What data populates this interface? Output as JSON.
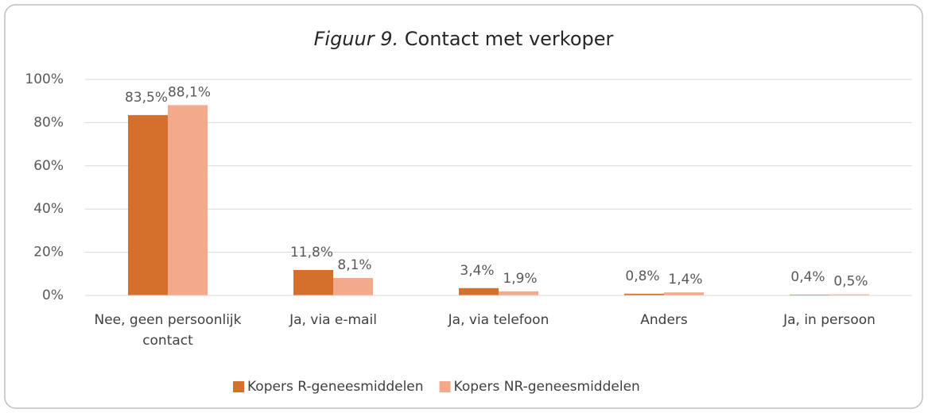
{
  "chart_data": {
    "type": "bar",
    "figure_label": "Figuur 9.",
    "title": "Contact met verkoper",
    "categories": [
      "Nee, geen persoonlijk contact",
      "Ja, via e-mail",
      "Ja, via telefoon",
      "Anders",
      "Ja, in persoon"
    ],
    "series": [
      {
        "name": "Kopers R-geneesmiddelen",
        "color": "#d4702c",
        "values": [
          83.5,
          11.8,
          3.4,
          0.8,
          0.4
        ],
        "value_labels": [
          "83,5%",
          "11,8%",
          "3,4%",
          "0,8%",
          "0,4%"
        ]
      },
      {
        "name": "Kopers NR-geneesmiddelen",
        "color": "#f2aa8a",
        "values": [
          88.1,
          8.1,
          1.9,
          1.4,
          0.5
        ],
        "value_labels": [
          "88,1%",
          "8,1%",
          "1,9%",
          "1,4%",
          "0,5%"
        ]
      }
    ],
    "ylim": [
      0,
      100
    ],
    "yticks": [
      {
        "value": 0,
        "label": "0%"
      },
      {
        "value": 20,
        "label": "20%"
      },
      {
        "value": 40,
        "label": "40%"
      },
      {
        "value": 60,
        "label": "60%"
      },
      {
        "value": 80,
        "label": "80%"
      },
      {
        "value": 100,
        "label": "100%"
      }
    ],
    "grid": true,
    "legend": "bottom"
  }
}
